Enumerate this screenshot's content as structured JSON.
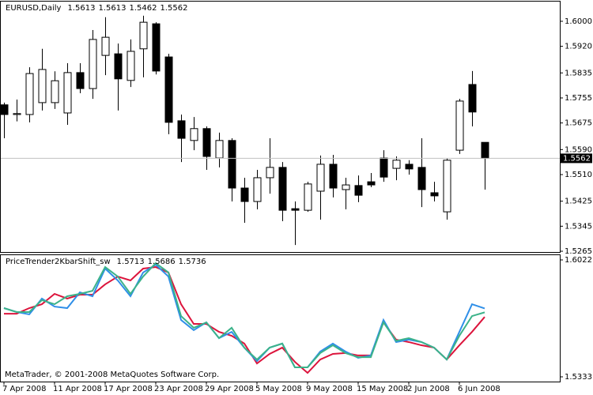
{
  "chart_data": [
    {
      "type": "candlestick",
      "title": "EURUSD,Daily",
      "title_values": [
        1.5613,
        1.5613,
        1.5462,
        1.5562
      ],
      "categories": [
        "7 Apr 2008",
        null,
        null,
        null,
        "11 Apr 2008",
        null,
        null,
        null,
        "17 Apr 2008",
        null,
        null,
        null,
        "23 Apr 2008",
        null,
        null,
        null,
        "29 Apr 2008",
        null,
        null,
        null,
        "5 May 2008",
        null,
        null,
        null,
        "9 May 2008",
        null,
        null,
        null,
        "15 May 2008",
        null,
        null,
        null,
        "2 Jun 2008",
        null,
        null,
        null,
        "6 Jun 2008",
        null,
        null
      ],
      "open": [
        1.5733,
        1.5702,
        1.5702,
        1.574,
        1.574,
        1.5707,
        1.5836,
        1.5785,
        1.5891,
        1.5896,
        1.5811,
        1.5912,
        1.5992,
        1.5886,
        1.5682,
        1.5619,
        1.5657,
        1.5563,
        1.5619,
        1.5467,
        1.5424,
        1.55,
        1.5533,
        1.5401,
        1.5396,
        1.5457,
        1.5543,
        1.5462,
        1.5475,
        1.5487,
        1.5563,
        1.553,
        1.5543,
        1.5533,
        1.5452,
        1.5391,
        1.5588,
        1.5798,
        1.5613
      ],
      "high": [
        1.574,
        1.575,
        1.5853,
        1.5912,
        1.584,
        1.5866,
        1.5866,
        1.5972,
        1.6013,
        1.5929,
        1.5942,
        1.6018,
        1.5997,
        1.5896,
        1.5702,
        1.5694,
        1.5664,
        1.5644,
        1.5626,
        1.55,
        1.5525,
        1.5626,
        1.555,
        1.5424,
        1.5487,
        1.5571,
        1.5573,
        1.55,
        1.5507,
        1.5515,
        1.5588,
        1.5568,
        1.5556,
        1.5626,
        1.5487,
        1.5563,
        1.5752,
        1.5841,
        1.5613
      ],
      "low": [
        1.5626,
        1.568,
        1.5677,
        1.5715,
        1.572,
        1.5669,
        1.577,
        1.5752,
        1.5828,
        1.5715,
        1.579,
        1.5821,
        1.583,
        1.5639,
        1.555,
        1.5588,
        1.5525,
        1.5533,
        1.5424,
        1.5356,
        1.5399,
        1.5449,
        1.5361,
        1.5285,
        1.5391,
        1.5366,
        1.5437,
        1.5399,
        1.5422,
        1.547,
        1.5487,
        1.5492,
        1.551,
        1.5406,
        1.5424,
        1.5366,
        1.5576,
        1.5664,
        1.5462
      ],
      "close": [
        1.5702,
        1.5705,
        1.5833,
        1.5846,
        1.581,
        1.5836,
        1.5785,
        1.5942,
        1.5949,
        1.5816,
        1.5904,
        1.5997,
        1.5841,
        1.5677,
        1.5626,
        1.5657,
        1.5568,
        1.5619,
        1.5467,
        1.5424,
        1.55,
        1.5533,
        1.5396,
        1.5396,
        1.548,
        1.5543,
        1.5467,
        1.5477,
        1.5444,
        1.5477,
        1.5502,
        1.5556,
        1.5528,
        1.5462,
        1.5442,
        1.5556,
        1.5745,
        1.571,
        1.5562
      ],
      "ylim": [
        1.526,
        1.6063
      ],
      "yticks": [
        {
          "value": 1.6,
          "label": "1.6000"
        },
        {
          "value": 1.592,
          "label": "1.5920"
        },
        1.5835,
        1.5755,
        1.5675,
        {
          "value": 1.559,
          "label": "1.5590"
        },
        {
          "value": 1.551,
          "label": "1.5510"
        },
        1.5425,
        1.5345,
        1.5265
      ],
      "price_label": 1.5562,
      "grid": true
    },
    {
      "type": "line",
      "title": "PriceTrender2KbarShift_sw",
      "title_values": [
        1.5713,
        1.5686,
        1.5736
      ],
      "annotation": "MetaTrader, © 2001-2008 MetaQuotes Software Corp.",
      "series": [
        {
          "color": "#dc143c",
          "values": [
            1.5705,
            1.5705,
            1.5738,
            1.5761,
            1.5822,
            1.5794,
            1.5817,
            1.5817,
            1.5878,
            1.5924,
            1.5901,
            1.5971,
            1.598,
            1.5948,
            1.5761,
            1.5645,
            1.5645,
            1.5598,
            1.5575,
            1.5529,
            1.5412,
            1.5468,
            1.5505,
            1.5421,
            1.5356,
            1.5435,
            1.5468,
            1.5473,
            1.5459,
            1.5459,
            1.5654,
            1.5552,
            1.5538,
            1.5519,
            1.5505,
            1.5435,
            1.5519,
            1.5598,
            1.5686
          ]
        },
        {
          "color": "#2f8fe8",
          "values": [
            1.5738,
            1.5715,
            1.5701,
            1.5794,
            1.5747,
            1.5738,
            1.5831,
            1.5808,
            1.5971,
            1.5901,
            1.5808,
            1.5948,
            1.5994,
            1.5924,
            1.5668,
            1.5608,
            1.5654,
            1.5561,
            1.5598,
            1.5505,
            1.5426,
            1.5505,
            1.5529,
            1.5389,
            1.5389,
            1.5482,
            1.5529,
            1.5482,
            1.5445,
            1.5459,
            1.5668,
            1.5538,
            1.5552,
            1.5538,
            1.5505,
            1.5435,
            1.5598,
            1.5761,
            1.5736
          ]
        },
        {
          "color": "#3cb38a",
          "values": [
            1.5738,
            1.5715,
            1.5715,
            1.5785,
            1.5761,
            1.5808,
            1.5822,
            1.584,
            1.598,
            1.5924,
            1.5822,
            1.5924,
            1.6003,
            1.5948,
            1.5691,
            1.5622,
            1.5654,
            1.5561,
            1.5622,
            1.5505,
            1.5435,
            1.5505,
            1.5529,
            1.5389,
            1.5389,
            1.5473,
            1.5519,
            1.5473,
            1.5449,
            1.5449,
            1.5654,
            1.5545,
            1.5561,
            1.5538,
            1.5505,
            1.5435,
            1.5575,
            1.5691,
            1.5713
          ]
        }
      ],
      "ylim": [
        1.5305,
        1.605
      ],
      "yticks": [
        1.6022,
        1.5333
      ]
    }
  ]
}
